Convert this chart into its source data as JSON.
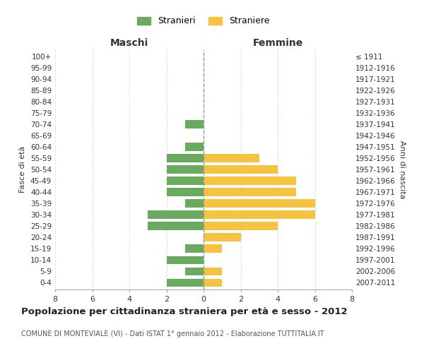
{
  "age_groups": [
    "0-4",
    "5-9",
    "10-14",
    "15-19",
    "20-24",
    "25-29",
    "30-34",
    "35-39",
    "40-44",
    "45-49",
    "50-54",
    "55-59",
    "60-64",
    "65-69",
    "70-74",
    "75-79",
    "80-84",
    "85-89",
    "90-94",
    "95-99",
    "100+"
  ],
  "birth_years": [
    "2007-2011",
    "2002-2006",
    "1997-2001",
    "1992-1996",
    "1987-1991",
    "1982-1986",
    "1977-1981",
    "1972-1976",
    "1967-1971",
    "1962-1966",
    "1957-1961",
    "1952-1956",
    "1947-1951",
    "1942-1946",
    "1937-1941",
    "1932-1936",
    "1927-1931",
    "1922-1926",
    "1917-1921",
    "1912-1916",
    "≤ 1911"
  ],
  "maschi": [
    2,
    1,
    2,
    1,
    0,
    3,
    3,
    1,
    2,
    2,
    2,
    2,
    1,
    0,
    1,
    0,
    0,
    0,
    0,
    0,
    0
  ],
  "femmine": [
    1,
    1,
    0,
    1,
    2,
    4,
    6,
    6,
    5,
    5,
    4,
    3,
    0,
    0,
    0,
    0,
    0,
    0,
    0,
    0,
    0
  ],
  "color_maschi": "#6aaa5e",
  "color_femmine": "#f5c242",
  "title": "Popolazione per cittadinanza straniera per età e sesso - 2012",
  "subtitle": "COMUNE DI MONTEVIALE (VI) - Dati ISTAT 1° gennaio 2012 - Elaborazione TUTTITALIA.IT",
  "xlabel_left": "Maschi",
  "xlabel_right": "Femmine",
  "ylabel_left": "Fasce di età",
  "ylabel_right": "Anni di nascita",
  "legend_maschi": "Stranieri",
  "legend_femmine": "Straniere",
  "xlim": 8,
  "background_color": "#ffffff",
  "grid_color": "#cccccc"
}
